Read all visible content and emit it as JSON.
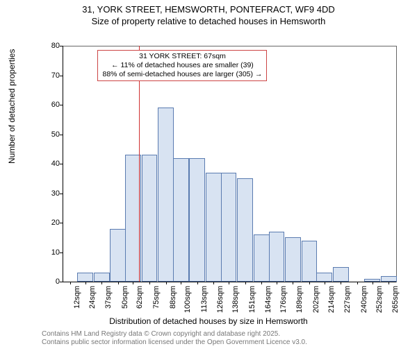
{
  "title_line1": "31, YORK STREET, HEMSWORTH, PONTEFRACT, WF9 4DD",
  "title_line2": "Size of property relative to detached houses in Hemsworth",
  "y_label": "Number of detached properties",
  "x_label": "Distribution of detached houses by size in Hemsworth",
  "footer_line1": "Contains HM Land Registry data © Crown copyright and database right 2025.",
  "footer_line2": "Contains public sector information licensed under the Open Government Licence v3.0.",
  "chart": {
    "type": "histogram",
    "background_color": "#ffffff",
    "axis_color": "#000000",
    "frame_color": "#666666",
    "bar_fill": "#d8e3f2",
    "bar_border": "#5a7bb0",
    "ref_line_color": "#d03030",
    "ref_value": 67,
    "ylim": [
      0,
      80
    ],
    "ytick_step": 10,
    "x_ticks": [
      12,
      24,
      37,
      50,
      62,
      75,
      88,
      100,
      113,
      126,
      138,
      151,
      164,
      176,
      189,
      202,
      214,
      227,
      240,
      252,
      265
    ],
    "x_tick_suffix": "sqm",
    "x_min": 6,
    "x_max": 271,
    "bar_width_value": 12.6,
    "bars": [
      {
        "x": 24,
        "y": 3
      },
      {
        "x": 37,
        "y": 3
      },
      {
        "x": 50,
        "y": 18
      },
      {
        "x": 62,
        "y": 43
      },
      {
        "x": 75,
        "y": 43
      },
      {
        "x": 88,
        "y": 59
      },
      {
        "x": 100,
        "y": 42
      },
      {
        "x": 113,
        "y": 42
      },
      {
        "x": 126,
        "y": 37
      },
      {
        "x": 138,
        "y": 37
      },
      {
        "x": 151,
        "y": 35
      },
      {
        "x": 164,
        "y": 16
      },
      {
        "x": 176,
        "y": 17
      },
      {
        "x": 189,
        "y": 15
      },
      {
        "x": 202,
        "y": 14
      },
      {
        "x": 214,
        "y": 3
      },
      {
        "x": 227,
        "y": 5
      },
      {
        "x": 252,
        "y": 1
      },
      {
        "x": 265,
        "y": 2
      }
    ],
    "annotation": {
      "line1": "31 YORK STREET: 67sqm",
      "line2": "← 11% of detached houses are smaller (39)",
      "line3": "88% of semi-detached houses are larger (305) →",
      "border_color": "#cc4444"
    },
    "title_fontsize": 13,
    "axis_label_fontsize": 12,
    "tick_fontsize": 11,
    "annotation_fontsize": 10.5,
    "footer_fontsize": 10,
    "footer_color": "#777777"
  }
}
